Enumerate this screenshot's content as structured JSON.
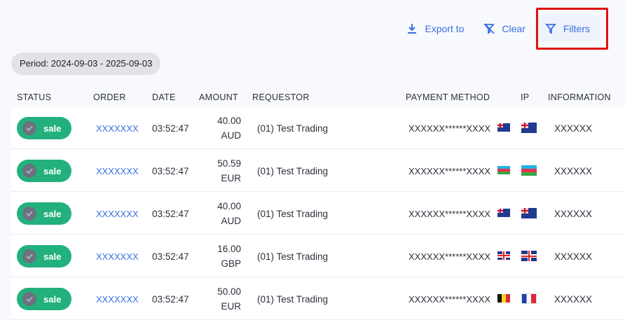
{
  "toolbar": {
    "export_label": "Export to",
    "clear_label": "Clear",
    "filters_label": "Filters"
  },
  "period": "Period: 2024-09-03 - 2025-09-03",
  "columns": [
    "STATUS",
    "ORDER",
    "DATE",
    "AMOUNT",
    "REQUESTOR",
    "PAYMENT METHOD",
    "IP",
    "INFORMATION"
  ],
  "rows": [
    {
      "status": "sale",
      "order": "XXXXXXX",
      "date": "03:52:47",
      "amount": "40.00",
      "currency": "AUD",
      "requestor": "(01) Test Trading",
      "payment": "XXXXXX******XXXX",
      "payment_flag": "AU",
      "ip_flag": "AU",
      "info": "XXXXXX"
    },
    {
      "status": "sale",
      "order": "XXXXXXX",
      "date": "03:52:47",
      "amount": "50.59",
      "currency": "EUR",
      "requestor": "(01) Test Trading",
      "payment": "XXXXXX******XXXX",
      "payment_flag": "AZ",
      "ip_flag": "AZ",
      "info": "XXXXXX"
    },
    {
      "status": "sale",
      "order": "XXXXXXX",
      "date": "03:52:47",
      "amount": "40.00",
      "currency": "AUD",
      "requestor": "(01) Test Trading",
      "payment": "XXXXXX******XXXX",
      "payment_flag": "AU",
      "ip_flag": "AU",
      "info": "XXXXXX"
    },
    {
      "status": "sale",
      "order": "XXXXXXX",
      "date": "03:52:47",
      "amount": "16.00",
      "currency": "GBP",
      "requestor": "(01) Test Trading",
      "payment": "XXXXXX******XXXX",
      "payment_flag": "GB",
      "ip_flag": "GB",
      "info": "XXXXXX"
    },
    {
      "status": "sale",
      "order": "XXXXXXX",
      "date": "03:52:47",
      "amount": "50.00",
      "currency": "EUR",
      "requestor": "(01) Test Trading",
      "payment": "XXXXXX******XXXX",
      "payment_flag": "BE",
      "ip_flag": "FR",
      "info": "XXXXXX"
    }
  ],
  "colors": {
    "accent": "#3b6fe0",
    "sale": "#22b07d",
    "highlight": "#e01010"
  }
}
